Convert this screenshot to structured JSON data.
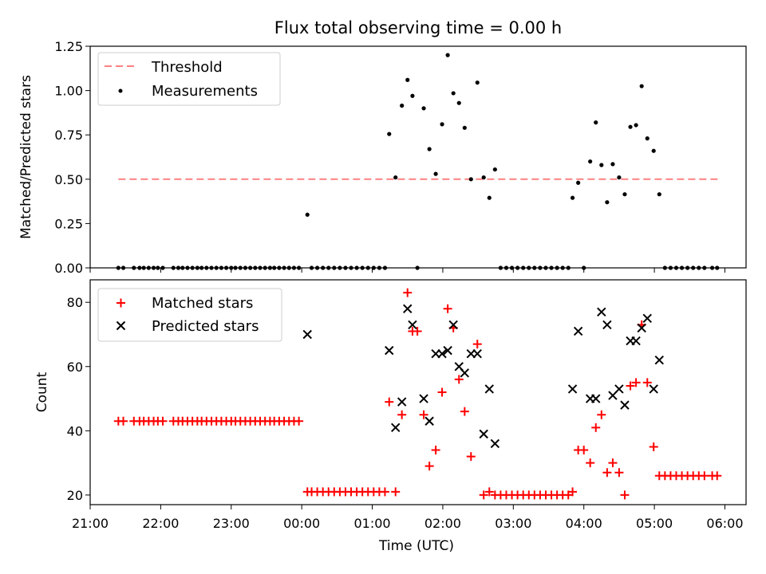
{
  "title": "Flux total observing time = 0.00 h",
  "chart_data": [
    {
      "type": "scatter",
      "ylabel": "Matched/Predicted stars",
      "ylim": [
        0,
        1.25
      ],
      "yticks": [
        "0.00",
        "0.25",
        "0.50",
        "0.75",
        "1.00",
        "1.25"
      ],
      "xlim": [
        21.0,
        30.3
      ],
      "legend_position": "top-left",
      "threshold": {
        "name": "Threshold",
        "y": 0.5,
        "x_start": 21.4,
        "x_end": 29.93,
        "color": "#ff8080"
      },
      "series": [
        {
          "name": "Measurements",
          "marker": "dot",
          "color": "#000000",
          "points": [
            [
              21.4,
              0
            ],
            [
              21.47,
              0
            ],
            [
              21.62,
              0
            ],
            [
              21.7,
              0
            ],
            [
              21.76,
              0
            ],
            [
              21.83,
              0
            ],
            [
              21.9,
              0
            ],
            [
              21.96,
              0
            ],
            [
              22.03,
              0
            ],
            [
              22.18,
              0
            ],
            [
              22.25,
              0
            ],
            [
              22.31,
              0
            ],
            [
              22.38,
              0
            ],
            [
              22.45,
              0
            ],
            [
              22.52,
              0
            ],
            [
              22.58,
              0
            ],
            [
              22.65,
              0
            ],
            [
              22.72,
              0
            ],
            [
              22.79,
              0
            ],
            [
              22.86,
              0
            ],
            [
              22.93,
              0
            ],
            [
              23.0,
              0
            ],
            [
              23.06,
              0
            ],
            [
              23.13,
              0
            ],
            [
              23.2,
              0
            ],
            [
              23.27,
              0
            ],
            [
              23.34,
              0
            ],
            [
              23.41,
              0
            ],
            [
              23.48,
              0
            ],
            [
              23.55,
              0
            ],
            [
              23.61,
              0
            ],
            [
              23.68,
              0
            ],
            [
              23.75,
              0
            ],
            [
              23.82,
              0
            ],
            [
              23.89,
              0
            ],
            [
              23.96,
              0
            ],
            [
              24.08,
              0.3
            ],
            [
              24.14,
              0
            ],
            [
              24.22,
              0
            ],
            [
              24.3,
              0
            ],
            [
              24.38,
              0
            ],
            [
              24.46,
              0
            ],
            [
              24.54,
              0
            ],
            [
              24.62,
              0
            ],
            [
              24.7,
              0
            ],
            [
              24.78,
              0
            ],
            [
              24.86,
              0
            ],
            [
              24.94,
              0
            ],
            [
              25.02,
              0
            ],
            [
              25.1,
              0
            ],
            [
              25.18,
              0
            ],
            [
              25.24,
              0.755
            ],
            [
              25.33,
              0.51
            ],
            [
              25.42,
              0.915
            ],
            [
              25.5,
              1.06
            ],
            [
              25.57,
              0.97
            ],
            [
              25.64,
              0
            ],
            [
              25.73,
              0.9
            ],
            [
              25.81,
              0.67
            ],
            [
              25.9,
              0.53
            ],
            [
              25.99,
              0.81
            ],
            [
              26.07,
              1.2
            ],
            [
              26.15,
              0.985
            ],
            [
              26.23,
              0.93
            ],
            [
              26.31,
              0.79
            ],
            [
              26.4,
              0.5
            ],
            [
              26.49,
              1.045
            ],
            [
              26.58,
              0.51
            ],
            [
              26.66,
              0.395
            ],
            [
              26.74,
              0.555
            ],
            [
              26.82,
              0
            ],
            [
              26.9,
              0
            ],
            [
              26.98,
              0
            ],
            [
              27.06,
              0
            ],
            [
              27.14,
              0
            ],
            [
              27.22,
              0
            ],
            [
              27.3,
              0
            ],
            [
              27.38,
              0
            ],
            [
              27.46,
              0
            ],
            [
              27.54,
              0
            ],
            [
              27.62,
              0
            ],
            [
              27.7,
              0
            ],
            [
              27.78,
              0
            ],
            [
              27.84,
              0.395
            ],
            [
              27.92,
              0.48
            ],
            [
              28.0,
              0
            ],
            [
              28.09,
              0.6
            ],
            [
              28.17,
              0.82
            ],
            [
              28.25,
              0.58
            ],
            [
              28.33,
              0.37
            ],
            [
              28.41,
              0.585
            ],
            [
              28.5,
              0.51
            ],
            [
              28.58,
              0.415
            ],
            [
              28.66,
              0.795
            ],
            [
              28.74,
              0.805
            ],
            [
              28.82,
              1.025
            ],
            [
              28.9,
              0.73
            ],
            [
              28.99,
              0.66
            ],
            [
              29.07,
              0.415
            ],
            [
              29.15,
              0
            ],
            [
              29.23,
              0
            ],
            [
              29.31,
              0
            ],
            [
              29.39,
              0
            ],
            [
              29.47,
              0
            ],
            [
              29.55,
              0
            ],
            [
              29.63,
              0
            ],
            [
              29.71,
              0
            ],
            [
              29.82,
              0
            ],
            [
              29.89,
              0
            ]
          ]
        }
      ]
    },
    {
      "type": "scatter",
      "ylabel": "Count",
      "xlabel": "Time (UTC)",
      "ylim": [
        17,
        87
      ],
      "yticks": [
        "20",
        "40",
        "60",
        "80"
      ],
      "xlim": [
        21.0,
        30.3
      ],
      "xticks": [
        "21:00",
        "22:00",
        "23:00",
        "00:00",
        "01:00",
        "02:00",
        "03:00",
        "04:00",
        "05:00",
        "06:00"
      ],
      "legend_position": "top-left",
      "series": [
        {
          "name": "Matched stars",
          "marker": "plus",
          "color": "#ff0000",
          "points": [
            [
              21.4,
              43
            ],
            [
              21.47,
              43
            ],
            [
              21.62,
              43
            ],
            [
              21.7,
              43
            ],
            [
              21.76,
              43
            ],
            [
              21.83,
              43
            ],
            [
              21.9,
              43
            ],
            [
              21.96,
              43
            ],
            [
              22.03,
              43
            ],
            [
              22.18,
              43
            ],
            [
              22.25,
              43
            ],
            [
              22.31,
              43
            ],
            [
              22.38,
              43
            ],
            [
              22.45,
              43
            ],
            [
              22.52,
              43
            ],
            [
              22.58,
              43
            ],
            [
              22.65,
              43
            ],
            [
              22.72,
              43
            ],
            [
              22.79,
              43
            ],
            [
              22.86,
              43
            ],
            [
              22.93,
              43
            ],
            [
              23.0,
              43
            ],
            [
              23.06,
              43
            ],
            [
              23.13,
              43
            ],
            [
              23.2,
              43
            ],
            [
              23.27,
              43
            ],
            [
              23.34,
              43
            ],
            [
              23.41,
              43
            ],
            [
              23.48,
              43
            ],
            [
              23.55,
              43
            ],
            [
              23.61,
              43
            ],
            [
              23.68,
              43
            ],
            [
              23.75,
              43
            ],
            [
              23.82,
              43
            ],
            [
              23.89,
              43
            ],
            [
              23.96,
              43
            ],
            [
              24.08,
              21
            ],
            [
              24.14,
              21
            ],
            [
              24.22,
              21
            ],
            [
              24.3,
              21
            ],
            [
              24.38,
              21
            ],
            [
              24.46,
              21
            ],
            [
              24.54,
              21
            ],
            [
              24.62,
              21
            ],
            [
              24.7,
              21
            ],
            [
              24.78,
              21
            ],
            [
              24.86,
              21
            ],
            [
              24.94,
              21
            ],
            [
              25.02,
              21
            ],
            [
              25.1,
              21
            ],
            [
              25.18,
              21
            ],
            [
              25.24,
              49
            ],
            [
              25.33,
              21
            ],
            [
              25.42,
              45
            ],
            [
              25.5,
              83
            ],
            [
              25.57,
              71
            ],
            [
              25.64,
              71
            ],
            [
              25.73,
              45
            ],
            [
              25.81,
              29
            ],
            [
              25.9,
              34
            ],
            [
              25.99,
              52
            ],
            [
              26.07,
              78
            ],
            [
              26.15,
              72
            ],
            [
              26.23,
              56
            ],
            [
              26.31,
              46
            ],
            [
              26.4,
              32
            ],
            [
              26.49,
              67
            ],
            [
              26.58,
              20
            ],
            [
              26.66,
              21
            ],
            [
              26.74,
              20
            ],
            [
              26.82,
              20
            ],
            [
              26.9,
              20
            ],
            [
              26.98,
              20
            ],
            [
              27.06,
              20
            ],
            [
              27.14,
              20
            ],
            [
              27.22,
              20
            ],
            [
              27.3,
              20
            ],
            [
              27.38,
              20
            ],
            [
              27.46,
              20
            ],
            [
              27.54,
              20
            ],
            [
              27.62,
              20
            ],
            [
              27.7,
              20
            ],
            [
              27.78,
              20
            ],
            [
              27.84,
              21
            ],
            [
              27.92,
              34
            ],
            [
              28.0,
              34
            ],
            [
              28.09,
              30
            ],
            [
              28.17,
              41
            ],
            [
              28.25,
              45
            ],
            [
              28.33,
              27
            ],
            [
              28.41,
              30
            ],
            [
              28.5,
              27
            ],
            [
              28.58,
              20
            ],
            [
              28.66,
              54
            ],
            [
              28.74,
              55
            ],
            [
              28.82,
              73
            ],
            [
              28.9,
              55
            ],
            [
              28.99,
              35
            ],
            [
              29.07,
              26
            ],
            [
              29.15,
              26
            ],
            [
              29.23,
              26
            ],
            [
              29.31,
              26
            ],
            [
              29.39,
              26
            ],
            [
              29.47,
              26
            ],
            [
              29.55,
              26
            ],
            [
              29.63,
              26
            ],
            [
              29.71,
              26
            ],
            [
              29.82,
              26
            ],
            [
              29.89,
              26
            ]
          ]
        },
        {
          "name": "Predicted stars",
          "marker": "cross",
          "color": "#000000",
          "points": [
            [
              24.08,
              70
            ],
            [
              25.24,
              65
            ],
            [
              25.33,
              41
            ],
            [
              25.42,
              49
            ],
            [
              25.5,
              78
            ],
            [
              25.57,
              73
            ],
            [
              25.73,
              50
            ],
            [
              25.81,
              43
            ],
            [
              25.9,
              64
            ],
            [
              25.99,
              64
            ],
            [
              26.07,
              65
            ],
            [
              26.15,
              73
            ],
            [
              26.23,
              60
            ],
            [
              26.31,
              58
            ],
            [
              26.4,
              64
            ],
            [
              26.49,
              64
            ],
            [
              26.58,
              39
            ],
            [
              26.66,
              53
            ],
            [
              26.74,
              36
            ],
            [
              27.84,
              53
            ],
            [
              27.92,
              71
            ],
            [
              28.09,
              50
            ],
            [
              28.17,
              50
            ],
            [
              28.25,
              77
            ],
            [
              28.33,
              73
            ],
            [
              28.41,
              51
            ],
            [
              28.5,
              53
            ],
            [
              28.58,
              48
            ],
            [
              28.66,
              68
            ],
            [
              28.74,
              68
            ],
            [
              28.82,
              72
            ],
            [
              28.9,
              75
            ],
            [
              28.99,
              53
            ],
            [
              29.07,
              62
            ]
          ]
        }
      ]
    }
  ]
}
